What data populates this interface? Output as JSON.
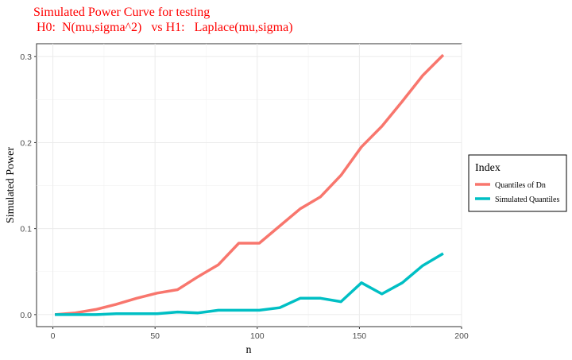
{
  "chart_data": {
    "type": "line",
    "title_line1": "Simulated Power Curve for testing",
    "title_line2": " H0:  N(mu,sigma^2)   vs H1:   Laplace(mu,sigma)",
    "xlabel": "n",
    "ylabel": "Simulated Power",
    "xlim": [
      -8,
      200
    ],
    "ylim": [
      -0.014,
      0.315
    ],
    "x_ticks": [
      0,
      50,
      100,
      150,
      200
    ],
    "y_ticks": [
      0.0,
      0.1,
      0.2,
      0.3
    ],
    "x_tick_labels": [
      "0",
      "50",
      "100",
      "150",
      "200"
    ],
    "y_tick_labels": [
      "0.0",
      "0.1",
      "0.2",
      "0.3"
    ],
    "grid": true,
    "legend": {
      "title": "Index",
      "position": "right"
    },
    "series": [
      {
        "name": "Quantiles of Dn",
        "color": "#F8766D",
        "x": [
          1,
          11,
          21,
          31,
          41,
          51,
          61,
          71,
          81,
          91,
          101,
          111,
          121,
          131,
          141,
          151,
          161,
          171,
          181,
          191
        ],
        "y": [
          0.0,
          0.002,
          0.006,
          0.012,
          0.019,
          0.025,
          0.029,
          0.044,
          0.058,
          0.083,
          0.083,
          0.103,
          0.123,
          0.137,
          0.162,
          0.195,
          0.219,
          0.248,
          0.278,
          0.302
        ]
      },
      {
        "name": "Simulated Quantiles",
        "color": "#00BFC4",
        "x": [
          1,
          11,
          21,
          31,
          41,
          51,
          61,
          71,
          81,
          91,
          101,
          111,
          121,
          131,
          141,
          151,
          161,
          171,
          181,
          191
        ],
        "y": [
          0.0,
          0.0,
          0.0,
          0.001,
          0.001,
          0.001,
          0.003,
          0.002,
          0.005,
          0.005,
          0.005,
          0.008,
          0.019,
          0.019,
          0.015,
          0.037,
          0.024,
          0.037,
          0.057,
          0.071
        ]
      }
    ]
  }
}
